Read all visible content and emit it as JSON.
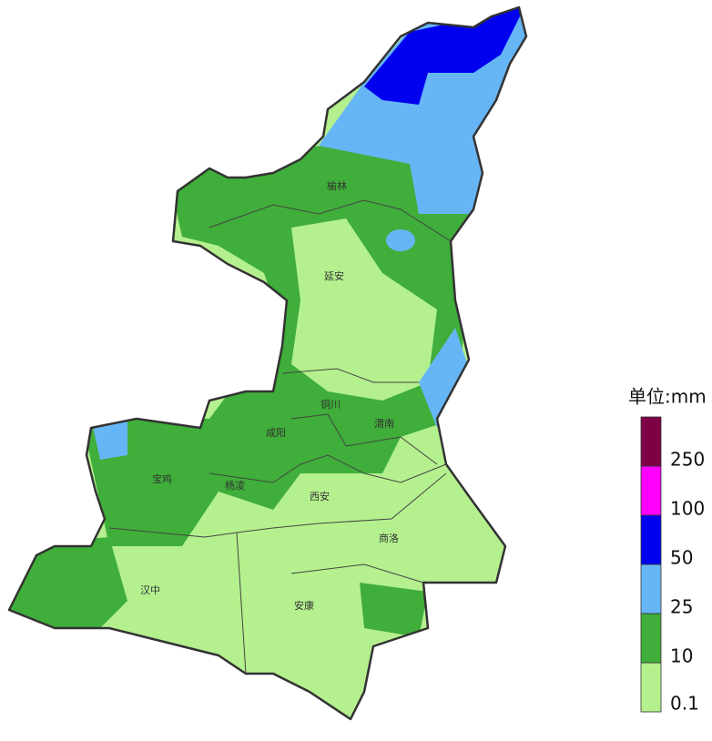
{
  "map": {
    "cities": [
      {
        "label": "榆林"
      },
      {
        "label": "延安"
      },
      {
        "label": "铜川"
      },
      {
        "label": "咸阳"
      },
      {
        "label": "渭南"
      },
      {
        "label": "宝鸡"
      },
      {
        "label": "杨凌"
      },
      {
        "label": "西安"
      },
      {
        "label": "商洛"
      },
      {
        "label": "汉中"
      },
      {
        "label": "安康"
      }
    ],
    "legend": {
      "title": "单位:mm",
      "levels": [
        {
          "color": "#b4f08e",
          "label": "0.1"
        },
        {
          "color": "#3fae3a",
          "label": "10"
        },
        {
          "color": "#66b6f6",
          "label": "25"
        },
        {
          "color": "#0000ee",
          "label": "50"
        },
        {
          "color": "#ff00ff",
          "label": "100"
        },
        {
          "color": "#800046",
          "label": "250"
        }
      ]
    }
  }
}
